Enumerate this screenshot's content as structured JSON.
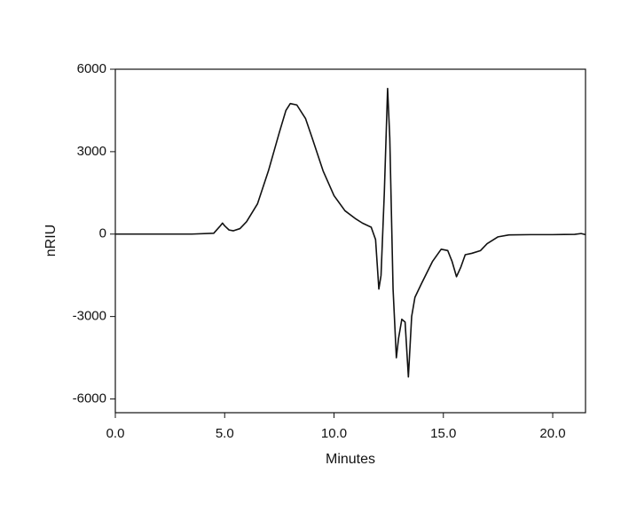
{
  "chart_data": {
    "type": "line",
    "xlabel": "Minutes",
    "ylabel": "nRIU",
    "xlim": [
      0,
      21.5
    ],
    "ylim": [
      -6500,
      6000
    ],
    "xticks": [
      {
        "value": 0,
        "label": "0.0"
      },
      {
        "value": 5,
        "label": "5.0"
      },
      {
        "value": 10,
        "label": "10.0"
      },
      {
        "value": 15,
        "label": "15.0"
      },
      {
        "value": 20,
        "label": "20.0"
      }
    ],
    "yticks": [
      -6000,
      -3000,
      0,
      3000,
      6000
    ],
    "color": "#111111",
    "x": [
      0,
      3.5,
      4.5,
      4.8,
      4.9,
      5.0,
      5.2,
      5.4,
      5.7,
      6.0,
      6.5,
      7.0,
      7.5,
      7.8,
      8.0,
      8.3,
      8.7,
      9.0,
      9.5,
      10.0,
      10.5,
      11.0,
      11.3,
      11.7,
      11.9,
      12.05,
      12.15,
      12.3,
      12.45,
      12.55,
      12.7,
      12.85,
      12.95,
      13.1,
      13.25,
      13.4,
      13.55,
      13.7,
      14.0,
      14.5,
      14.9,
      15.2,
      15.4,
      15.6,
      15.8,
      16.0,
      16.3,
      16.7,
      17.0,
      17.5,
      18.0,
      19.0,
      20.0,
      21.0,
      21.3,
      21.5
    ],
    "values": [
      0,
      0,
      30,
      300,
      400,
      300,
      150,
      120,
      200,
      450,
      1100,
      2300,
      3700,
      4500,
      4750,
      4700,
      4200,
      3500,
      2300,
      1400,
      850,
      550,
      400,
      250,
      -200,
      -2000,
      -1500,
      1500,
      5300,
      3500,
      -2000,
      -4500,
      -3800,
      -3100,
      -3200,
      -5200,
      -3000,
      -2300,
      -1800,
      -1000,
      -550,
      -600,
      -1000,
      -1550,
      -1200,
      -750,
      -700,
      -600,
      -350,
      -100,
      -30,
      -20,
      -20,
      -10,
      20,
      -20
    ]
  }
}
